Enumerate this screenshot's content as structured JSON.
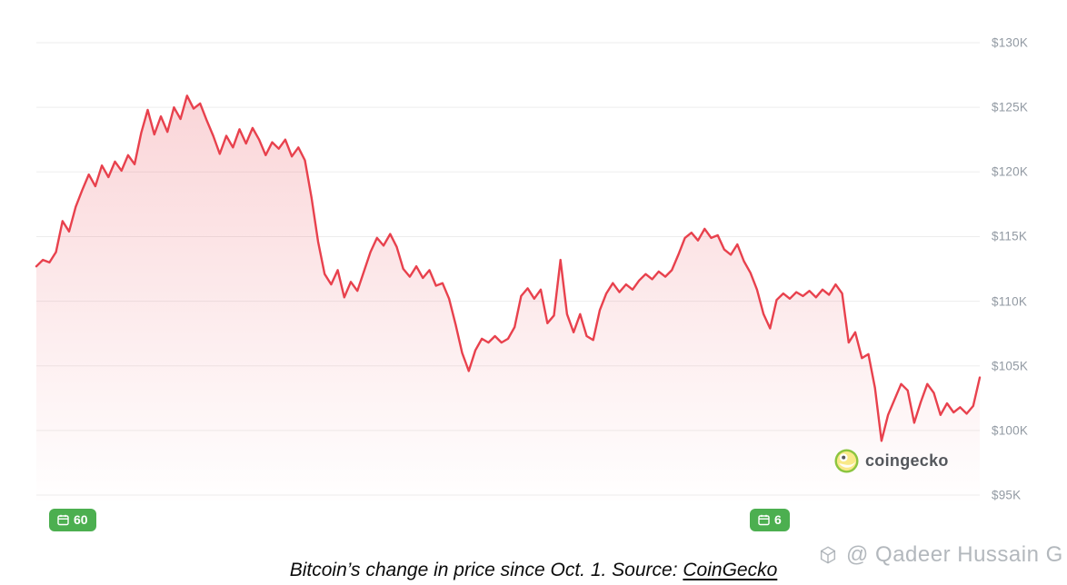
{
  "chart_data": {
    "type": "area",
    "title": "Bitcoin’s change in price since Oct. 1",
    "xlabel": "",
    "ylabel": "",
    "unit": "USD (thousands)",
    "ylim": [
      95,
      130
    ],
    "grid": true,
    "legend": false,
    "line_color": "#e8414d",
    "fill_color_top": "rgba(233,65,78,0.22)",
    "fill_color_bottom": "rgba(233,65,78,0)",
    "grid_color": "#ededed",
    "y_ticks": [
      {
        "label": "$130K",
        "value": 130
      },
      {
        "label": "$125K",
        "value": 125
      },
      {
        "label": "$120K",
        "value": 120
      },
      {
        "label": "$115K",
        "value": 115
      },
      {
        "label": "$110K",
        "value": 110
      },
      {
        "label": "$105K",
        "value": 105
      },
      {
        "label": "$100K",
        "value": 100
      },
      {
        "label": "$95K",
        "value": 95
      }
    ],
    "values": [
      112.7,
      113.2,
      113.0,
      113.8,
      116.2,
      115.4,
      117.3,
      118.6,
      119.8,
      118.9,
      120.5,
      119.6,
      120.8,
      120.1,
      121.3,
      120.6,
      123.0,
      124.8,
      122.9,
      124.3,
      123.1,
      125.0,
      124.1,
      125.9,
      124.9,
      125.3,
      124.0,
      122.8,
      121.4,
      122.8,
      121.9,
      123.3,
      122.2,
      123.4,
      122.5,
      121.3,
      122.3,
      121.8,
      122.5,
      121.2,
      121.9,
      120.9,
      118.0,
      114.6,
      112.1,
      111.3,
      112.4,
      110.3,
      111.5,
      110.8,
      112.3,
      113.8,
      114.9,
      114.3,
      115.2,
      114.2,
      112.5,
      111.9,
      112.7,
      111.8,
      112.4,
      111.2,
      111.4,
      110.2,
      108.2,
      106.0,
      104.6,
      106.2,
      107.1,
      106.8,
      107.3,
      106.8,
      107.1,
      108.0,
      110.4,
      111.0,
      110.2,
      110.9,
      108.3,
      108.9,
      113.2,
      109.0,
      107.6,
      109.0,
      107.3,
      107.0,
      109.3,
      110.6,
      111.4,
      110.7,
      111.3,
      110.9,
      111.6,
      112.1,
      111.7,
      112.3,
      111.9,
      112.4,
      113.6,
      114.9,
      115.3,
      114.7,
      115.6,
      114.9,
      115.1,
      114.0,
      113.6,
      114.4,
      113.1,
      112.2,
      110.9,
      109.0,
      107.9,
      110.1,
      110.6,
      110.2,
      110.7,
      110.4,
      110.8,
      110.3,
      110.9,
      110.5,
      111.3,
      110.6,
      106.8,
      107.6,
      105.6,
      105.9,
      103.3,
      99.2,
      101.2,
      102.4,
      103.6,
      103.1,
      100.6,
      102.2,
      103.6,
      102.9,
      101.2,
      102.1,
      101.4,
      101.8,
      101.3,
      101.9,
      104.1
    ]
  },
  "badges": {
    "color": "#4caf50",
    "left": {
      "value": "60"
    },
    "right": {
      "value": "6"
    }
  },
  "attribution": {
    "brand": "coingecko"
  },
  "caption": {
    "text": "Bitcoin’s change in price since Oct. 1. Source: ",
    "link_text": "CoinGecko"
  },
  "watermark": {
    "text": "@ Qadeer Hussain G"
  }
}
